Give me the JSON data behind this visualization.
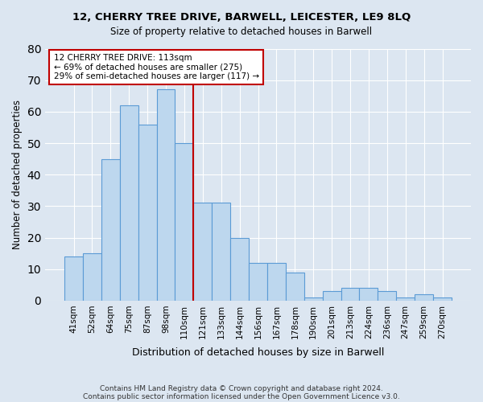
{
  "title1": "12, CHERRY TREE DRIVE, BARWELL, LEICESTER, LE9 8LQ",
  "title2": "Size of property relative to detached houses in Barwell",
  "xlabel": "Distribution of detached houses by size in Barwell",
  "ylabel": "Number of detached properties",
  "categories": [
    "41sqm",
    "52sqm",
    "64sqm",
    "75sqm",
    "87sqm",
    "98sqm",
    "110sqm",
    "121sqm",
    "133sqm",
    "144sqm",
    "156sqm",
    "167sqm",
    "178sqm",
    "190sqm",
    "201sqm",
    "213sqm",
    "224sqm",
    "236sqm",
    "247sqm",
    "259sqm",
    "270sqm"
  ],
  "values": [
    14,
    15,
    45,
    62,
    56,
    67,
    50,
    31,
    31,
    20,
    12,
    12,
    9,
    1,
    3,
    4,
    4,
    3,
    1,
    2,
    1
  ],
  "bar_color": "#bdd7ee",
  "bar_edge_color": "#5b9bd5",
  "bg_color": "#dce6f1",
  "plot_bg_color": "#dce6f1",
  "grid_color": "#ffffff",
  "vline_color": "#c00000",
  "vline_pos": 6.5,
  "annotation_text": "12 CHERRY TREE DRIVE: 113sqm\n← 69% of detached houses are smaller (275)\n29% of semi-detached houses are larger (117) →",
  "annotation_box_edgecolor": "#c00000",
  "ylim": [
    0,
    80
  ],
  "yticks": [
    0,
    10,
    20,
    30,
    40,
    50,
    60,
    70,
    80
  ],
  "footer1": "Contains HM Land Registry data © Crown copyright and database right 2024.",
  "footer2": "Contains public sector information licensed under the Open Government Licence v3.0."
}
